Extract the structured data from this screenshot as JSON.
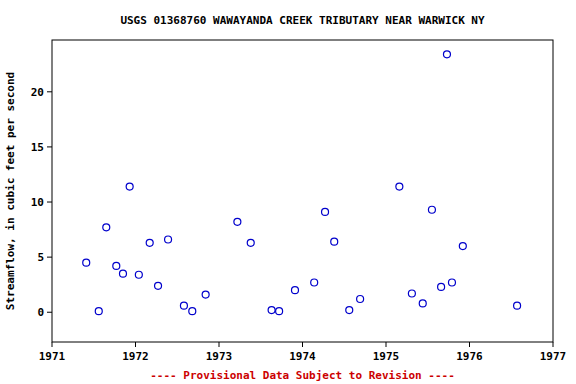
{
  "chart_data": {
    "type": "scatter",
    "title": "USGS 01368760 WAWAYANDA CREEK TRIBUTARY NEAR WARWICK NY",
    "y_label": "Streamflow, in cubic feet per second",
    "annotation": "---- Provisional Data Subject to Revision ----",
    "x": [
      1971.41,
      1971.56,
      1971.65,
      1971.77,
      1971.85,
      1971.93,
      1972.04,
      1972.17,
      1972.27,
      1972.39,
      1972.58,
      1972.68,
      1972.84,
      1973.22,
      1973.38,
      1973.63,
      1973.72,
      1973.91,
      1974.14,
      1974.27,
      1974.38,
      1974.56,
      1974.69,
      1975.16,
      1975.31,
      1975.44,
      1975.55,
      1975.66,
      1975.73,
      1975.79,
      1975.92,
      1976.57
    ],
    "values": [
      4.5,
      0.1,
      7.7,
      4.2,
      3.5,
      11.4,
      3.4,
      6.3,
      2.4,
      6.6,
      0.6,
      0.1,
      1.6,
      8.2,
      6.3,
      0.2,
      0.1,
      2.0,
      2.7,
      9.1,
      6.4,
      0.2,
      1.2,
      11.4,
      1.7,
      0.8,
      9.3,
      2.3,
      23.4,
      2.7,
      6.0,
      0.6
    ],
    "color": "#0000cc",
    "marker": "circle",
    "xlim": [
      1971,
      1977
    ],
    "xticks": [
      1971,
      1972,
      1973,
      1974,
      1975,
      1976,
      1977
    ],
    "ylim": [
      -2.7,
      24.7
    ],
    "yticks": [
      0,
      5,
      10,
      15,
      20
    ],
    "grid": false
  }
}
